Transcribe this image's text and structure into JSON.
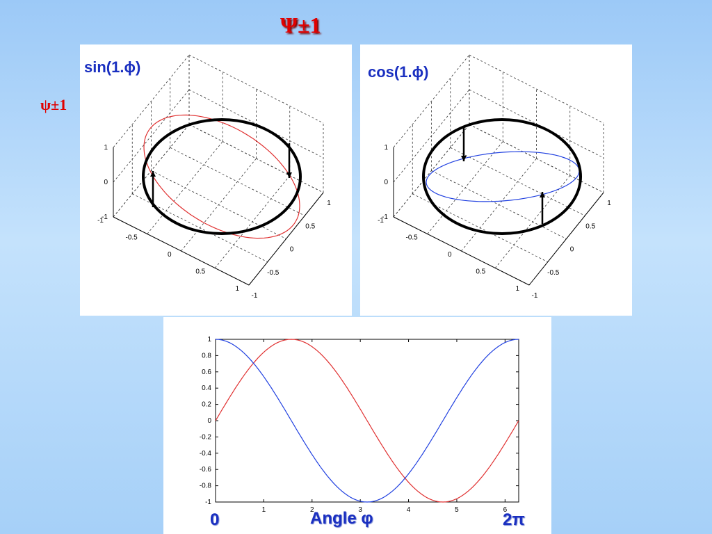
{
  "slide": {
    "title": "Ψ±1",
    "side_label": "ψ±1"
  },
  "chart_data": [
    {
      "type": "3d-surface-plot",
      "label": "sin(1.ϕ)",
      "curve_color": "#e03030",
      "z_ticks": [
        "1",
        "0",
        "-1"
      ],
      "left_ticks": [
        "-1",
        "-0.5",
        "0",
        "0.5",
        "1"
      ],
      "right_ticks": [
        "1",
        "0.5",
        "0",
        "-0.5",
        "-1"
      ]
    },
    {
      "type": "3d-surface-plot",
      "label": "cos(1.ϕ)",
      "curve_color": "#2040e0",
      "z_ticks": [
        "1",
        "0",
        "-1"
      ],
      "left_ticks": [
        "-1",
        "-0.5",
        "0",
        "0.5",
        "1"
      ],
      "right_ticks": [
        "1",
        "0.5",
        "0",
        "-0.5",
        "-1"
      ]
    },
    {
      "type": "line",
      "xlim": [
        0,
        6.2832
      ],
      "ylim": [
        -1,
        1
      ],
      "x_ticks": [
        "1",
        "2",
        "3",
        "4",
        "5",
        "6"
      ],
      "y_ticks": [
        "1",
        "0.8",
        "0.6",
        "0.4",
        "0.2",
        "0",
        "-0.2",
        "-0.4",
        "-0.6",
        "-0.8",
        "-1"
      ],
      "series": [
        {
          "function": "sin",
          "color": "#e03030"
        },
        {
          "function": "cos",
          "color": "#2040e0"
        }
      ],
      "x_start_label": "0",
      "x_end_label": "2π",
      "xlabel": "Angle φ"
    }
  ]
}
